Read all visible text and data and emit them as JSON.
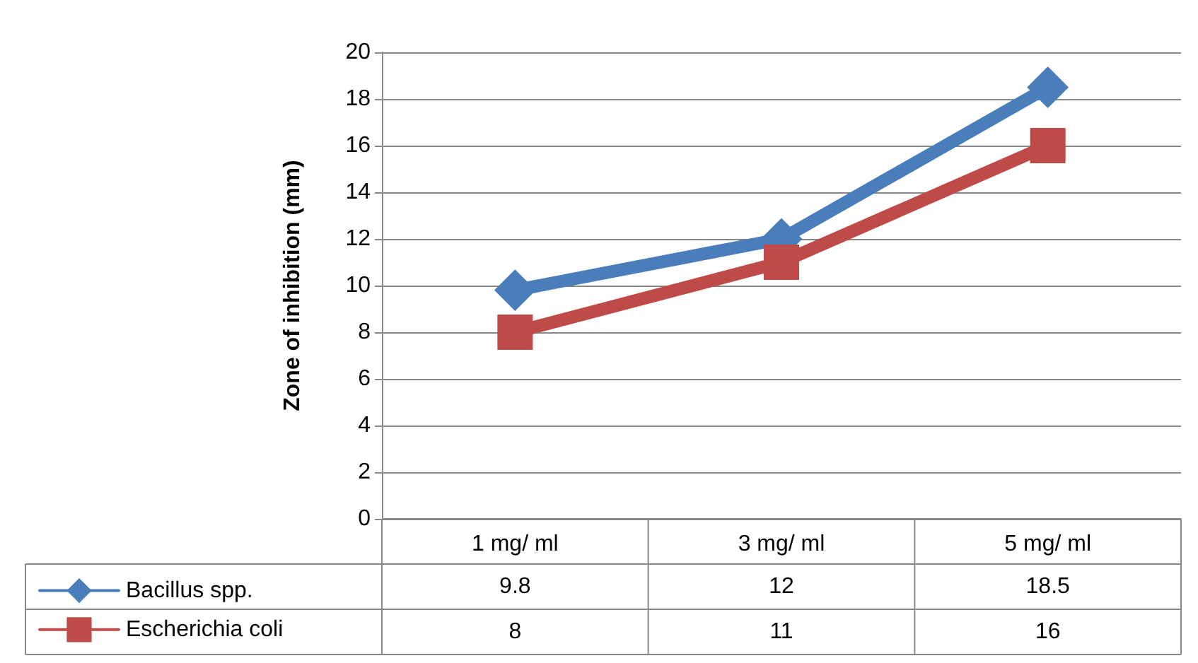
{
  "chart_data": {
    "type": "line",
    "ylabel": "Zone of inhibition (mm)",
    "categories": [
      "1 mg/ ml",
      "3 mg/ ml",
      "5 mg/ ml"
    ],
    "series": [
      {
        "name": "Bacillus spp.",
        "color": "#4a7ebb",
        "values": [
          9.8,
          12,
          18.5
        ],
        "marker": "diamond"
      },
      {
        "name": "Escherichia coli",
        "color": "#be4b48",
        "values": [
          8,
          11,
          16
        ],
        "marker": "square"
      }
    ],
    "ylim": [
      0,
      20
    ],
    "yticks": [
      0,
      2,
      4,
      6,
      8,
      10,
      12,
      14,
      16,
      18,
      20
    ],
    "grid": "y",
    "legend": "bottom left",
    "data_labels": true
  }
}
